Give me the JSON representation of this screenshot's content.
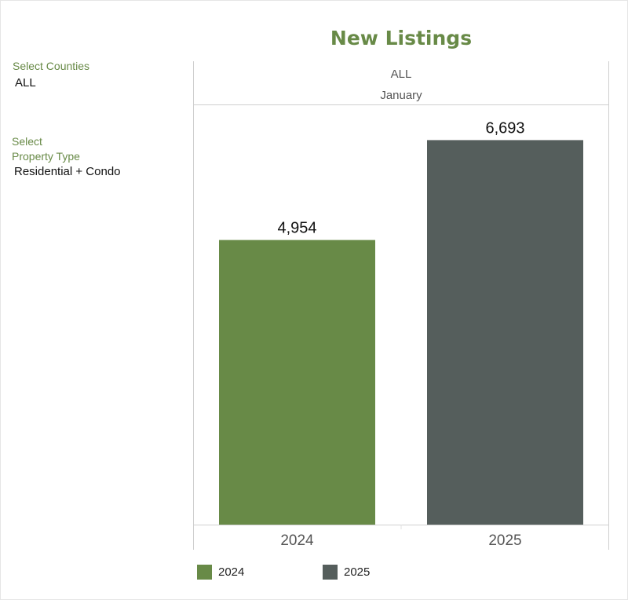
{
  "title": "New Listings",
  "filters": {
    "counties": {
      "label": "Select Counties",
      "value": "ALL"
    },
    "property_type": {
      "label_line1": "Select",
      "label_line2": "Property Type",
      "value": "Residential + Condo"
    }
  },
  "header": {
    "county": "ALL",
    "month": "January"
  },
  "colors": {
    "accent": "#688a47",
    "series_2024": "#688a47",
    "series_2025": "#555e5c"
  },
  "chart_data": {
    "type": "bar",
    "title": "New Listings",
    "categories": [
      "2024",
      "2025"
    ],
    "values": [
      4954,
      6693
    ],
    "value_labels": [
      "4,954",
      "6,693"
    ],
    "ylim": [
      0,
      7300
    ],
    "grid": false,
    "legend_placement": "bottom",
    "legend": [
      "2024",
      "2025"
    ]
  }
}
